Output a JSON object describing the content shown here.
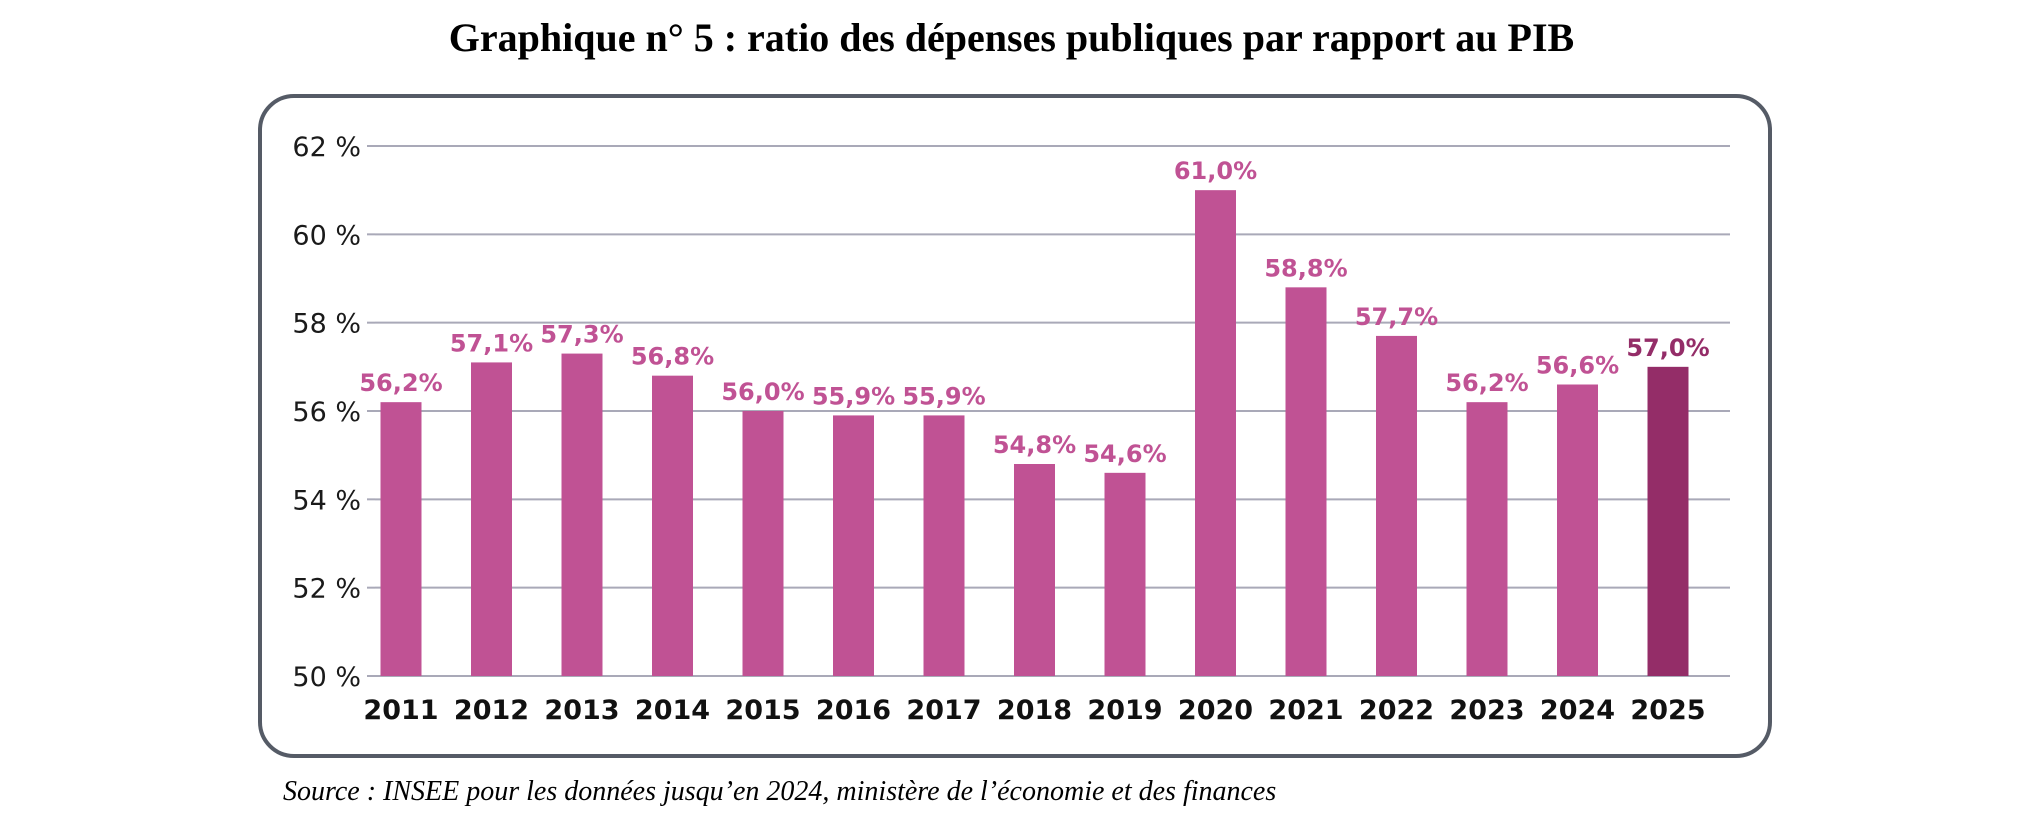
{
  "title": "Graphique n° 5 : ratio des dépenses publiques par rapport au PIB",
  "source": "Source : INSEE pour les données jusqu’en 2024, ministère de l’économie et des finances",
  "colors": {
    "bar": "#c05294",
    "bar_highlight": "#942d68",
    "grid": "#a9a9b8",
    "frame": "#555b66",
    "tick_text": "#1a1a1a"
  },
  "chart_data": {
    "type": "bar",
    "title": "Graphique n° 5 : ratio des dépenses publiques par rapport au PIB",
    "xlabel": "",
    "ylabel": "",
    "ylim": [
      50,
      62
    ],
    "y_ticks": [
      50,
      52,
      54,
      56,
      58,
      60,
      62
    ],
    "y_tick_labels": [
      "50 %",
      "52 %",
      "54 %",
      "56 %",
      "58 %",
      "60 %",
      "62 %"
    ],
    "grid": true,
    "categories": [
      "2011",
      "2012",
      "2013",
      "2014",
      "2015",
      "2016",
      "2017",
      "2018",
      "2019",
      "2020",
      "2021",
      "2022",
      "2023",
      "2024",
      "2025"
    ],
    "values": [
      56.2,
      57.1,
      57.3,
      56.8,
      56.0,
      55.9,
      55.9,
      54.8,
      54.6,
      61.0,
      58.8,
      57.7,
      56.2,
      56.6,
      57.0
    ],
    "data_labels": [
      "56,2%",
      "57,1%",
      "57,3%",
      "56,8%",
      "56,0%",
      "55,9%",
      "55,9%",
      "54,8%",
      "54,6%",
      "61,0%",
      "58,8%",
      "57,7%",
      "56,2%",
      "56,6%",
      "57,0%"
    ],
    "highlighted_category": "2025"
  }
}
